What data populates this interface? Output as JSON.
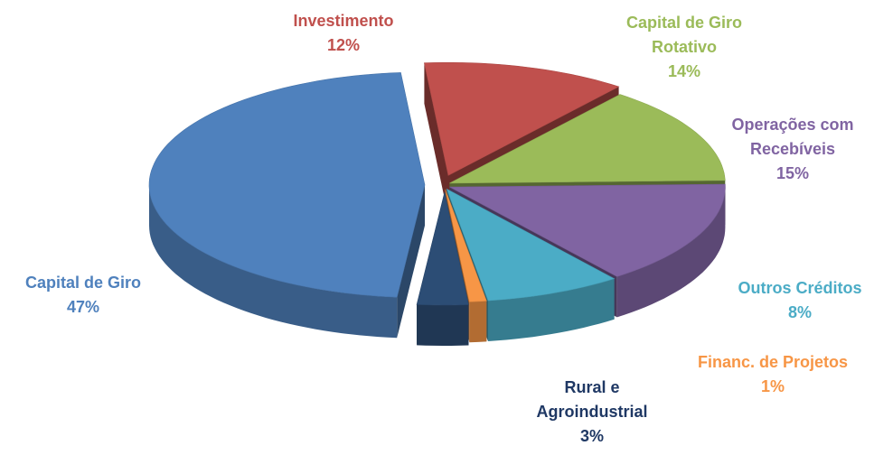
{
  "chart_data": {
    "type": "pie",
    "categories": [
      "Investimento",
      "Capital de Giro Rotativo",
      "Operações com Recebíveis",
      "Outros Créditos",
      "Financ. de Projetos",
      "Rural e Agroindustrial",
      "Capital de Giro"
    ],
    "values": [
      12,
      14,
      15,
      8,
      1,
      3,
      47
    ],
    "value_labels": [
      "12%",
      "14%",
      "15%",
      "8%",
      "1%",
      "3%",
      "47%"
    ],
    "colors": [
      "#c0504d",
      "#9bbb59",
      "#8064a2",
      "#4bacc6",
      "#f79646",
      "#2c4d75",
      "#4f81bd"
    ],
    "label_colors": [
      "#c0504d",
      "#9bbb59",
      "#8064a2",
      "#4bacc6",
      "#f79646",
      "#1f3864",
      "#4f81bd"
    ]
  }
}
